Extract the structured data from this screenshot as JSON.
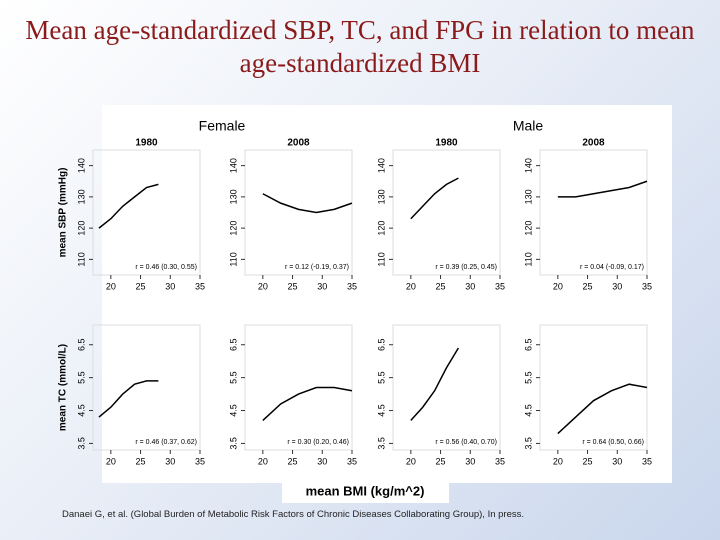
{
  "title": "Mean age-standardized SBP, TC, and FPG in relation to mean age-standardized BMI",
  "figure": {
    "groups": [
      "Female",
      "Male"
    ],
    "x_label": "mean BMI (kg/m^2)"
  },
  "citation": "Danaei G, et al. (Global Burden of Metabolic Risk Factors of Chronic Diseases Collaborating Group), In press.",
  "chart_data": [
    {
      "type": "line",
      "title": "1980",
      "y_label": "mean SBP (mmHg)",
      "annotation": "r = 0.46 (0.30, 0.55)",
      "color": "#000000",
      "x": [
        18,
        20,
        22,
        24,
        26,
        28
      ],
      "values": [
        120,
        123,
        127,
        130,
        133,
        134
      ],
      "xlim": [
        17,
        35
      ],
      "xticks": [
        20,
        25,
        30,
        35
      ],
      "ylim": [
        105,
        145
      ],
      "yticks": [
        110,
        120,
        130,
        140
      ]
    },
    {
      "type": "line",
      "title": "2008",
      "annotation": "r = 0.12 (-0.19, 0.37)",
      "color": "#000000",
      "x": [
        20,
        23,
        26,
        29,
        32,
        35
      ],
      "values": [
        131,
        128,
        126,
        125,
        126,
        128
      ],
      "xlim": [
        17,
        35
      ],
      "xticks": [
        20,
        25,
        30,
        35
      ],
      "ylim": [
        105,
        145
      ],
      "yticks": [
        110,
        120,
        130,
        140
      ]
    },
    {
      "type": "line",
      "title": "1980",
      "annotation": "r = 0.39 (0.25, 0.45)",
      "color": "#000000",
      "x": [
        20,
        22,
        24,
        26,
        28
      ],
      "values": [
        123,
        127,
        131,
        134,
        136
      ],
      "xlim": [
        17,
        35
      ],
      "xticks": [
        20,
        25,
        30,
        35
      ],
      "ylim": [
        105,
        145
      ],
      "yticks": [
        110,
        120,
        130,
        140
      ]
    },
    {
      "type": "line",
      "title": "2008",
      "annotation": "r = 0.04 (-0.09, 0.17)",
      "color": "#000000",
      "x": [
        20,
        23,
        26,
        29,
        32,
        35
      ],
      "values": [
        130,
        130,
        131,
        132,
        133,
        135
      ],
      "xlim": [
        17,
        35
      ],
      "xticks": [
        20,
        25,
        30,
        35
      ],
      "ylim": [
        105,
        145
      ],
      "yticks": [
        110,
        120,
        130,
        140
      ]
    },
    {
      "type": "line",
      "y_label": "mean TC (mmol/L)",
      "annotation": "r = 0.46 (0.37, 0.62)",
      "color": "#000000",
      "x": [
        18,
        20,
        22,
        24,
        26,
        28
      ],
      "values": [
        4.3,
        4.6,
        5.0,
        5.3,
        5.4,
        5.4
      ],
      "xlim": [
        17,
        35
      ],
      "xticks": [
        20,
        25,
        30,
        35
      ],
      "ylim": [
        3.3,
        7.1
      ],
      "yticks": [
        3.5,
        4.5,
        5.5,
        6.5
      ]
    },
    {
      "type": "line",
      "annotation": "r = 0.30 (0.20, 0.46)",
      "color": "#000000",
      "x": [
        20,
        23,
        26,
        29,
        32,
        35
      ],
      "values": [
        4.2,
        4.7,
        5.0,
        5.2,
        5.2,
        5.1
      ],
      "xlim": [
        17,
        35
      ],
      "xticks": [
        20,
        25,
        30,
        35
      ],
      "ylim": [
        3.3,
        7.1
      ],
      "yticks": [
        3.5,
        4.5,
        5.5,
        6.5
      ]
    },
    {
      "type": "line",
      "annotation": "r = 0.56 (0.40, 0.70)",
      "color": "#000000",
      "x": [
        20,
        22,
        24,
        26,
        28
      ],
      "values": [
        4.2,
        4.6,
        5.1,
        5.8,
        6.4
      ],
      "xlim": [
        17,
        35
      ],
      "xticks": [
        20,
        25,
        30,
        35
      ],
      "ylim": [
        3.3,
        7.1
      ],
      "yticks": [
        3.5,
        4.5,
        5.5,
        6.5
      ]
    },
    {
      "type": "line",
      "annotation": "r = 0.64 (0.50, 0.66)",
      "color": "#000000",
      "x": [
        20,
        23,
        26,
        29,
        32,
        35
      ],
      "values": [
        3.8,
        4.3,
        4.8,
        5.1,
        5.3,
        5.2
      ],
      "xlim": [
        17,
        35
      ],
      "xticks": [
        20,
        25,
        30,
        35
      ],
      "ylim": [
        3.3,
        7.1
      ],
      "yticks": [
        3.5,
        4.5,
        5.5,
        6.5
      ]
    }
  ]
}
